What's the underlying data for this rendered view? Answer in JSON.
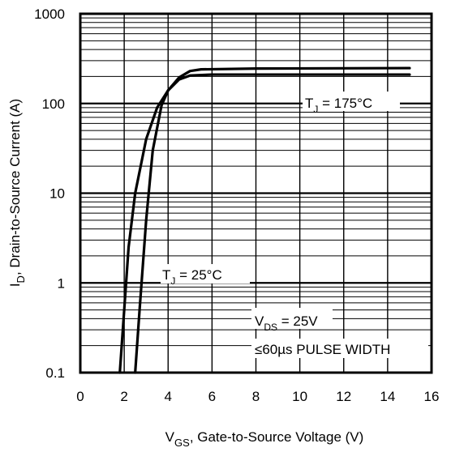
{
  "chart_data": {
    "type": "line",
    "xlabel": {
      "main": "V",
      "sub": "GS",
      "rest": ", Gate-to-Source Voltage (V)"
    },
    "ylabel": {
      "main": "I",
      "sub": "D",
      "rest": ", Drain-to-Source Current (A)"
    },
    "x_range": [
      0,
      16
    ],
    "y_range": [
      0.1,
      1000
    ],
    "y_scale": "log",
    "x_ticks": [
      {
        "value": 0,
        "label": "0"
      },
      {
        "value": 2,
        "label": "2"
      },
      {
        "value": 4,
        "label": "4"
      },
      {
        "value": 6,
        "label": "6"
      },
      {
        "value": 8,
        "label": "8"
      },
      {
        "value": 10,
        "label": "10"
      },
      {
        "value": 12,
        "label": "12"
      },
      {
        "value": 14,
        "label": "14"
      },
      {
        "value": 16,
        "label": "16"
      }
    ],
    "y_ticks": [
      {
        "value": 0.1,
        "label": "0.1"
      },
      {
        "value": 1,
        "label": "1"
      },
      {
        "value": 10,
        "label": "10"
      },
      {
        "value": 100,
        "label": "100"
      },
      {
        "value": 1000,
        "label": "1000"
      }
    ],
    "grid": true,
    "series": [
      {
        "points": [
          [
            1.8,
            0.1
          ],
          [
            2.0,
            0.5
          ],
          [
            2.2,
            2.5
          ],
          [
            2.5,
            10
          ],
          [
            3.0,
            40
          ],
          [
            3.5,
            90
          ],
          [
            4.0,
            140
          ],
          [
            4.5,
            185
          ],
          [
            5.0,
            205
          ],
          [
            6.0,
            210
          ],
          [
            8.0,
            210
          ],
          [
            15.0,
            210
          ]
        ]
      },
      {
        "points": [
          [
            2.5,
            0.1
          ],
          [
            2.7,
            0.5
          ],
          [
            3.0,
            5
          ],
          [
            3.3,
            30
          ],
          [
            3.7,
            95
          ],
          [
            4.0,
            140
          ],
          [
            4.5,
            195
          ],
          [
            5.0,
            230
          ],
          [
            5.5,
            240
          ],
          [
            8.0,
            245
          ],
          [
            15.0,
            248
          ]
        ]
      }
    ],
    "annotations": {
      "tj175": {
        "main": "T",
        "sub": "J",
        "rest": " = 175°C"
      },
      "tj25": {
        "main": "T",
        "sub": "J",
        "rest": " = 25°C"
      },
      "vds": {
        "main": "V",
        "sub": "DS",
        "rest": " = 25V"
      },
      "pulse": "≤60µs PULSE WIDTH"
    }
  }
}
